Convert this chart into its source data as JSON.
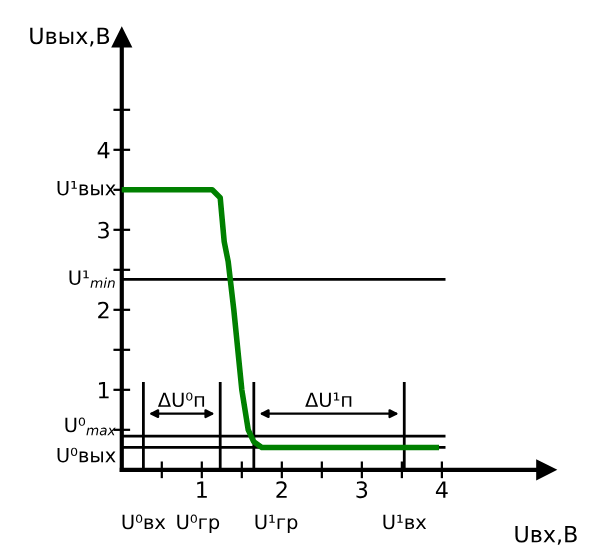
{
  "chart_data": {
    "type": "line",
    "xlabel": "Uвх,В",
    "ylabel": "Uвых,В",
    "x": [
      0,
      1.13,
      1.23,
      1.25,
      1.28,
      1.33,
      1.4,
      1.5,
      1.58,
      1.65,
      1.75,
      3.93
    ],
    "series": [
      {
        "color": "#008000",
        "values": [
          3.5,
          3.5,
          3.4,
          3.18,
          2.85,
          2.6,
          2,
          1,
          0.5,
          0.35,
          0.28,
          0.28
        ]
      }
    ],
    "xlim": [
      0,
      5.3
    ],
    "ylim": [
      0,
      5.4
    ],
    "xticks": [
      {
        "value": 0.5,
        "label": null
      },
      1,
      {
        "value": 1.5,
        "label": null
      },
      2,
      {
        "value": 2.5,
        "label": null
      },
      3,
      {
        "value": 3.5,
        "label": null
      },
      4
    ],
    "yticks": [
      {
        "value": 0.5,
        "label": null
      },
      1,
      {
        "value": 1.5,
        "label": null
      },
      2,
      {
        "value": 2.5,
        "label": null
      },
      3,
      {
        "value": 3.5,
        "label": null
      },
      4,
      {
        "value": 4.5,
        "label": null
      }
    ],
    "ref_lines": [
      {
        "axis": "x",
        "value": 0.27,
        "label": "U⁰вх",
        "color": "#000000"
      },
      {
        "axis": "x",
        "value": 1.23,
        "label": "U⁰гр",
        "color": "#000000"
      },
      {
        "axis": "x",
        "value": 1.65,
        "label": "U¹гр",
        "color": "#000000"
      },
      {
        "axis": "x",
        "value": 3.53,
        "label": "U¹вх",
        "color": "#000000"
      },
      {
        "axis": "y",
        "value": 2.38,
        "label": "U¹$_{min}$",
        "color": "#000000"
      },
      {
        "axis": "y",
        "value": 0.42,
        "label": "U⁰$_{max}$",
        "color": "#000000"
      },
      {
        "axis": "y",
        "value": 0.28,
        "label": "U⁰вых",
        "color": "#000000"
      }
    ],
    "annotations": [
      {
        "text": "U¹вых",
        "x": 0,
        "y": 3.5
      },
      "ΔU⁰п",
      "ΔU¹п"
    ],
    "grid": false,
    "legend": false,
    "marker": "none",
    "line_style": "solid"
  }
}
